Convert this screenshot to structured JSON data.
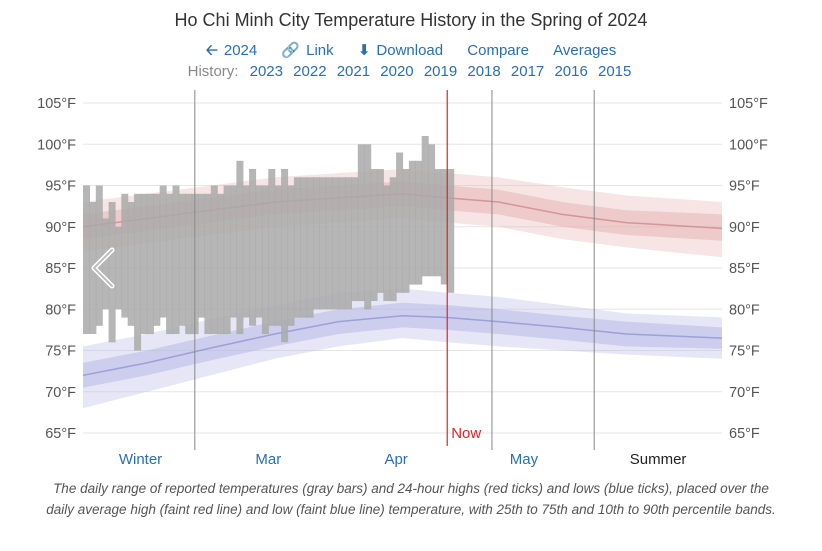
{
  "header": {
    "title": "Ho Chi Minh City Temperature History in the Spring of 2024",
    "nav": {
      "back_label": "2024",
      "link_label": "Link",
      "download_label": "Download",
      "compare_label": "Compare",
      "averages_label": "Averages"
    },
    "history_label": "History:",
    "history_years": [
      "2023",
      "2022",
      "2021",
      "2020",
      "2019",
      "2018",
      "2017",
      "2016",
      "2015"
    ]
  },
  "colors": {
    "accent": "#2a6fb0",
    "now_line": "#d62728",
    "bar": "#a9a9a9",
    "high_band": "#e8b4b4",
    "low_band": "#b8b8e6"
  },
  "caption": "The daily range of reported temperatures (gray bars) and 24-hour highs (red ticks) and lows (blue ticks), placed over the daily average high (faint red line) and low (faint blue line) temperature, with 25th to 75th and 10th to 90th percentile bands.",
  "chart_data": {
    "type": "area",
    "y_unit": "°F",
    "ylim": [
      63,
      107
    ],
    "y_ticks": [
      65,
      70,
      75,
      80,
      85,
      90,
      95,
      100,
      105
    ],
    "y_tick_labels": [
      "65°F",
      "70°F",
      "75°F",
      "80°F",
      "85°F",
      "90°F",
      "95°F",
      "100°F",
      "105°F"
    ],
    "x_range_days": [
      0,
      100
    ],
    "season_boundaries": [
      17.5,
      64,
      80
    ],
    "now_day": 57,
    "now_label": "Now",
    "season_labels": [
      {
        "label": "Winter",
        "day": 9,
        "kind": "season"
      },
      {
        "label": "Mar",
        "day": 29,
        "kind": "month"
      },
      {
        "label": "Apr",
        "day": 49,
        "kind": "month"
      },
      {
        "label": "May",
        "day": 69,
        "kind": "month"
      },
      {
        "label": "Summer",
        "day": 90,
        "kind": "season"
      }
    ],
    "avg_high": {
      "x": [
        0,
        10,
        20,
        30,
        40,
        50,
        57,
        65,
        75,
        85,
        100
      ],
      "mean": [
        90,
        91,
        92,
        93,
        93.5,
        94,
        93.5,
        93,
        91.5,
        90.5,
        89.8
      ],
      "p25": [
        88.5,
        89.5,
        90.5,
        91.5,
        92,
        92.5,
        92,
        91.5,
        90,
        89,
        88.3
      ],
      "p75": [
        91.5,
        92.5,
        93.5,
        94.5,
        95,
        95.5,
        95,
        94.5,
        93,
        92,
        91.5
      ],
      "p10": [
        87,
        88,
        89,
        90,
        90.5,
        91,
        90.5,
        90,
        88.5,
        87.5,
        86.3
      ],
      "p90": [
        93,
        94,
        95,
        96,
        96.5,
        97,
        96.5,
        96,
        94.8,
        93.8,
        93
      ]
    },
    "avg_low": {
      "x": [
        0,
        10,
        20,
        30,
        40,
        50,
        57,
        65,
        75,
        85,
        100
      ],
      "mean": [
        72,
        73.5,
        75.3,
        77,
        78.5,
        79.2,
        79,
        78.5,
        77.8,
        77,
        76.5
      ],
      "p25": [
        70.5,
        72,
        73.8,
        75.5,
        77,
        77.8,
        77.5,
        77,
        76.3,
        75.5,
        75.2
      ],
      "p75": [
        73.5,
        75,
        76.8,
        78.5,
        80,
        80.8,
        80.5,
        80,
        79.2,
        78.5,
        77.8
      ],
      "p10": [
        68,
        70,
        72,
        74,
        75.5,
        76.5,
        76,
        75.5,
        75,
        74.5,
        74
      ],
      "p90": [
        75.5,
        77,
        78.8,
        80.5,
        82,
        82.5,
        82,
        81.5,
        80.5,
        79.5,
        79
      ]
    },
    "daily_ranges": [
      {
        "day": 0,
        "low": 77,
        "high": 95
      },
      {
        "day": 1,
        "low": 77,
        "high": 93
      },
      {
        "day": 2,
        "low": 78,
        "high": 95
      },
      {
        "day": 3,
        "low": 80,
        "high": 91
      },
      {
        "day": 4,
        "low": 76,
        "high": 93
      },
      {
        "day": 5,
        "low": 80,
        "high": 90
      },
      {
        "day": 6,
        "low": 79,
        "high": 94
      },
      {
        "day": 7,
        "low": 78,
        "high": 93
      },
      {
        "day": 8,
        "low": 75,
        "high": 94
      },
      {
        "day": 9,
        "low": 77,
        "high": 94
      },
      {
        "day": 10,
        "low": 77,
        "high": 94
      },
      {
        "day": 11,
        "low": 78,
        "high": 94
      },
      {
        "day": 12,
        "low": 79,
        "high": 95
      },
      {
        "day": 13,
        "low": 77,
        "high": 94
      },
      {
        "day": 14,
        "low": 77,
        "high": 95
      },
      {
        "day": 15,
        "low": 78,
        "high": 94
      },
      {
        "day": 16,
        "low": 77,
        "high": 94
      },
      {
        "day": 17,
        "low": 77,
        "high": 94
      },
      {
        "day": 18,
        "low": 79,
        "high": 94
      },
      {
        "day": 19,
        "low": 77,
        "high": 94
      },
      {
        "day": 20,
        "low": 77,
        "high": 95
      },
      {
        "day": 21,
        "low": 77,
        "high": 94
      },
      {
        "day": 22,
        "low": 77,
        "high": 95
      },
      {
        "day": 23,
        "low": 79,
        "high": 95
      },
      {
        "day": 24,
        "low": 77,
        "high": 98
      },
      {
        "day": 25,
        "low": 79,
        "high": 95
      },
      {
        "day": 26,
        "low": 78,
        "high": 97
      },
      {
        "day": 27,
        "low": 79,
        "high": 95
      },
      {
        "day": 28,
        "low": 77,
        "high": 95
      },
      {
        "day": 29,
        "low": 78,
        "high": 97
      },
      {
        "day": 30,
        "low": 78,
        "high": 95
      },
      {
        "day": 31,
        "low": 76,
        "high": 97
      },
      {
        "day": 32,
        "low": 78,
        "high": 95
      },
      {
        "day": 33,
        "low": 79,
        "high": 96
      },
      {
        "day": 34,
        "low": 79,
        "high": 96
      },
      {
        "day": 35,
        "low": 79,
        "high": 96
      },
      {
        "day": 36,
        "low": 80,
        "high": 96
      },
      {
        "day": 37,
        "low": 80,
        "high": 96
      },
      {
        "day": 38,
        "low": 80,
        "high": 96
      },
      {
        "day": 39,
        "low": 80,
        "high": 96
      },
      {
        "day": 40,
        "low": 80,
        "high": 96
      },
      {
        "day": 41,
        "low": 80,
        "high": 96
      },
      {
        "day": 42,
        "low": 81,
        "high": 96
      },
      {
        "day": 43,
        "low": 81,
        "high": 100
      },
      {
        "day": 44,
        "low": 80,
        "high": 100
      },
      {
        "day": 45,
        "low": 81,
        "high": 97
      },
      {
        "day": 46,
        "low": 82,
        "high": 97
      },
      {
        "day": 47,
        "low": 81,
        "high": 95
      },
      {
        "day": 48,
        "low": 81,
        "high": 96
      },
      {
        "day": 49,
        "low": 82,
        "high": 99
      },
      {
        "day": 50,
        "low": 82,
        "high": 97
      },
      {
        "day": 51,
        "low": 83,
        "high": 98
      },
      {
        "day": 52,
        "low": 83,
        "high": 98
      },
      {
        "day": 53,
        "low": 84,
        "high": 101
      },
      {
        "day": 54,
        "low": 84,
        "high": 100
      },
      {
        "day": 55,
        "low": 84,
        "high": 97
      },
      {
        "day": 56,
        "low": 83,
        "high": 97
      },
      {
        "day": 57,
        "low": 82,
        "high": 97
      }
    ]
  }
}
